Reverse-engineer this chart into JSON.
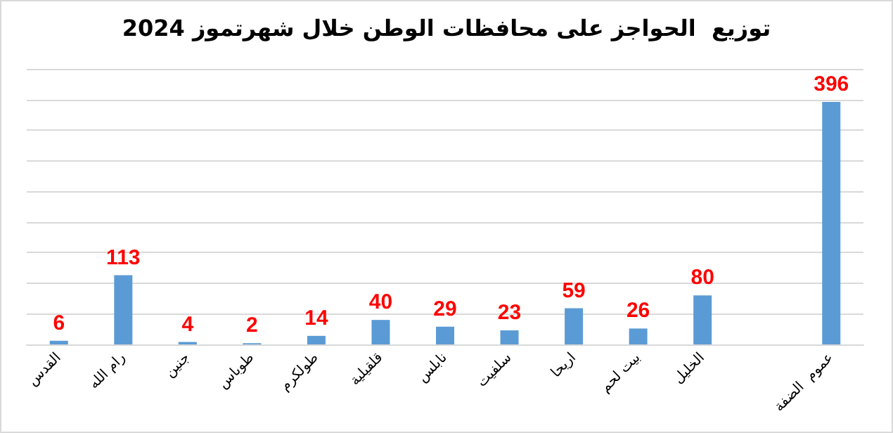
{
  "chart_data": {
    "type": "bar",
    "title": "توزيع  الحواجز على محافظات الوطن خلال شهرتموز 2024",
    "categories": [
      "القدس",
      "رام الله",
      "جنين",
      "طوباس",
      "طولكرم",
      "قلقيلية",
      "نابلس",
      "سلفيت",
      "اريحا",
      "بيت لحم",
      "الخليل",
      null,
      "عموم  الضفة"
    ],
    "values": [
      6,
      113,
      4,
      2,
      14,
      40,
      29,
      23,
      59,
      26,
      80,
      null,
      396
    ],
    "color": "#5b9bd5",
    "data_labels": true,
    "ylim": [
      0,
      450
    ],
    "yticks": [
      {
        "value": 0,
        "label": null
      },
      {
        "value": 50,
        "label": null
      },
      {
        "value": 100,
        "label": null
      },
      {
        "value": 150,
        "label": null
      },
      {
        "value": 200,
        "label": null
      },
      {
        "value": 250,
        "label": null
      },
      {
        "value": 300,
        "label": null
      },
      {
        "value": 350,
        "label": null
      },
      {
        "value": 400,
        "label": null
      },
      {
        "value": 450,
        "label": null
      }
    ],
    "grid": "y",
    "tick_labels": "x"
  }
}
